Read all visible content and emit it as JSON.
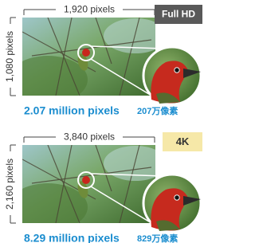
{
  "panels": [
    {
      "badge": "Full HD",
      "width_label": "1,920 pixels",
      "height_label": "1,080 pixels",
      "caption": "2.07 million pixels",
      "caption_ja": "207万像素"
    },
    {
      "badge": "4K",
      "width_label": "3,840 pixels",
      "height_label": "2,160 pixels",
      "caption": "8.29 million pixels",
      "caption_ja": "829万像素"
    }
  ]
}
